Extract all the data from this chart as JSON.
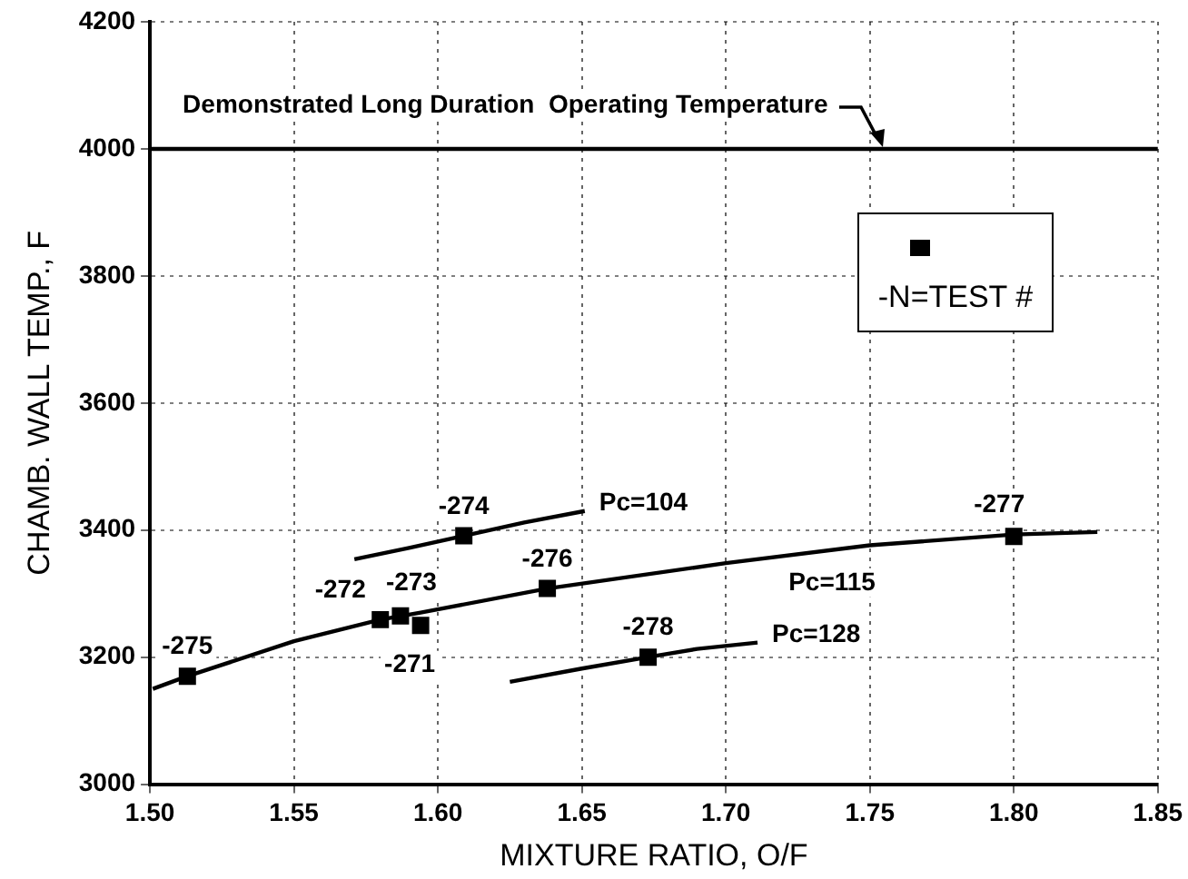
{
  "chart_data": {
    "type": "scatter",
    "xlabel": "MIXTURE RATIO, O/F",
    "ylabel": "CHAMB. WALL TEMP., F",
    "xlim": [
      1.5,
      1.85
    ],
    "xticks": [
      {
        "value": 1.5,
        "label": "1.50"
      },
      1.55,
      {
        "value": 1.6,
        "label": "1.60"
      },
      1.65,
      {
        "value": 1.7,
        "label": "1.70"
      },
      1.75,
      {
        "value": 1.8,
        "label": "1.80"
      },
      1.85
    ],
    "ylim": [
      3000,
      4200
    ],
    "yticks": [
      3000,
      3200,
      3400,
      3600,
      3800,
      4000,
      4200
    ],
    "grid": true,
    "legend": "top right",
    "annotations": [
      {
        "text": "-275",
        "x": 1.513,
        "y": 3170
      },
      {
        "text": "-272",
        "x": 1.58,
        "y": 3259
      },
      {
        "text": "-273",
        "x": 1.587,
        "y": 3265
      },
      {
        "text": "-271",
        "x": 1.594,
        "y": 3250
      },
      {
        "text": "-274",
        "x": 1.609,
        "y": 3391
      },
      {
        "text": "-276",
        "x": 1.638,
        "y": 3308
      },
      {
        "text": "-277",
        "x": 1.8,
        "y": 3390
      },
      {
        "text": "-278",
        "x": 1.673,
        "y": 3200
      }
    ],
    "ref_lines": [
      {
        "axis": "y",
        "value": 4000,
        "label": "Demonstrated Long Duration  Operating Temperature",
        "color": "#000000"
      }
    ],
    "series": [
      {
        "name": "-N=TEST #",
        "type": "scatter",
        "marker": "square",
        "color": "#000000",
        "x": [
          1.513,
          1.58,
          1.587,
          1.594,
          1.609,
          1.638,
          1.8,
          1.673
        ],
        "values": [
          3170,
          3259,
          3265,
          3250,
          3391,
          3308,
          3390,
          3200
        ]
      },
      {
        "name": "Pc=104",
        "type": "line",
        "marker": "none",
        "color": "#000000",
        "x": [
          1.571,
          1.59,
          1.609,
          1.63,
          1.651
        ],
        "values": [
          3354,
          3372,
          3391,
          3412,
          3430
        ]
      },
      {
        "name": "Pc=115",
        "type": "line",
        "marker": "none",
        "color": "#000000",
        "x": [
          1.501,
          1.513,
          1.55,
          1.58,
          1.594,
          1.638,
          1.7,
          1.75,
          1.8,
          1.829
        ],
        "values": [
          3150,
          3170,
          3225,
          3259,
          3270,
          3308,
          3348,
          3376,
          3393,
          3397
        ]
      },
      {
        "name": "Pc=128",
        "type": "line",
        "marker": "none",
        "color": "#000000",
        "x": [
          1.625,
          1.65,
          1.673,
          1.69,
          1.711
        ],
        "values": [
          3161,
          3182,
          3200,
          3213,
          3223
        ]
      }
    ]
  }
}
